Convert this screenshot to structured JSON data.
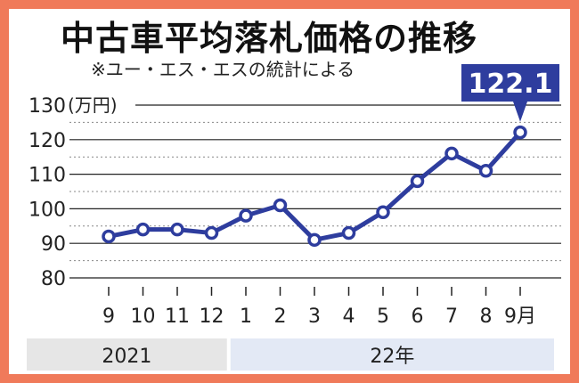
{
  "title": "中古車平均落札価格の推移",
  "note": "※ユー・エス・エスの統計による",
  "colors": {
    "line": "#2e3d9e",
    "marker_fill": "#ffffff",
    "frame": "#f07a5a",
    "band_2021": "#e6e6e6",
    "band_22": "#e3e9f5"
  },
  "chart_data": {
    "type": "line",
    "unit_label": "(万円)",
    "categories": [
      "9",
      "10",
      "11",
      "12",
      "1",
      "2",
      "3",
      "4",
      "5",
      "6",
      "7",
      "8",
      "9月"
    ],
    "values": [
      92,
      94,
      94,
      93,
      98,
      101,
      91,
      93,
      99,
      108,
      116,
      111,
      122.1
    ],
    "ylim": [
      80,
      130
    ],
    "yticks": [
      80,
      90,
      100,
      110,
      120,
      130
    ],
    "grid": true,
    "years": [
      {
        "label": "2021",
        "from_index": 0,
        "to_index": 3
      },
      {
        "label": "22年",
        "from_index": 4,
        "to_index": 12
      }
    ],
    "callout": {
      "label": "122.1",
      "index": 12
    }
  }
}
